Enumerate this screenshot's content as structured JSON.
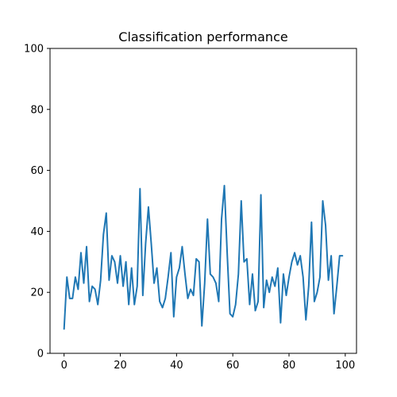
{
  "chart_data": {
    "type": "line",
    "title": "Classification performance",
    "xlabel": "",
    "ylabel": "",
    "xlim": [
      -5,
      104
    ],
    "ylim": [
      0,
      100
    ],
    "xticks": [
      0,
      20,
      40,
      60,
      80,
      100
    ],
    "yticks": [
      0,
      20,
      40,
      60,
      80,
      100
    ],
    "grid": false,
    "series_color": "#1f77b4",
    "series": [
      {
        "x": [
          0,
          1,
          2,
          3,
          4,
          5,
          6,
          7,
          8,
          9,
          10,
          11,
          12,
          13,
          14,
          15,
          16,
          17,
          18,
          19,
          20,
          21,
          22,
          23,
          24,
          25,
          26,
          27,
          28,
          29,
          30,
          31,
          32,
          33,
          34,
          35,
          36,
          37,
          38,
          39,
          40,
          41,
          42,
          43,
          44,
          45,
          46,
          47,
          48,
          49,
          50,
          51,
          52,
          53,
          54,
          55,
          56,
          57,
          58,
          59,
          60,
          61,
          62,
          63,
          64,
          65,
          66,
          67,
          68,
          69,
          70,
          71,
          72,
          73,
          74,
          75,
          76,
          77,
          78,
          79,
          80,
          81,
          82,
          83,
          84,
          85,
          86,
          87,
          88,
          89,
          90,
          91,
          92,
          93,
          94,
          95,
          96,
          97,
          98,
          99
        ],
        "values": [
          8,
          25,
          18,
          18,
          25,
          21,
          33,
          23,
          35,
          17,
          22,
          21,
          16,
          24,
          39,
          46,
          24,
          32,
          30,
          23,
          32,
          22,
          30,
          16,
          28,
          16,
          22,
          54,
          19,
          36,
          48,
          36,
          23,
          28,
          17,
          15,
          18,
          25,
          33,
          12,
          25,
          28,
          35,
          26,
          18,
          21,
          19,
          31,
          30,
          9,
          23,
          44,
          26,
          25,
          23,
          17,
          44,
          55,
          33,
          13,
          12,
          16,
          26,
          50,
          30,
          31,
          16,
          26,
          14,
          17,
          52,
          15,
          24,
          20,
          25,
          22,
          28,
          10,
          26,
          19,
          25,
          30,
          33,
          29,
          32,
          25,
          11,
          22,
          43,
          17,
          20,
          25,
          50,
          42,
          24,
          32,
          13,
          22,
          32,
          32
        ]
      }
    ]
  }
}
